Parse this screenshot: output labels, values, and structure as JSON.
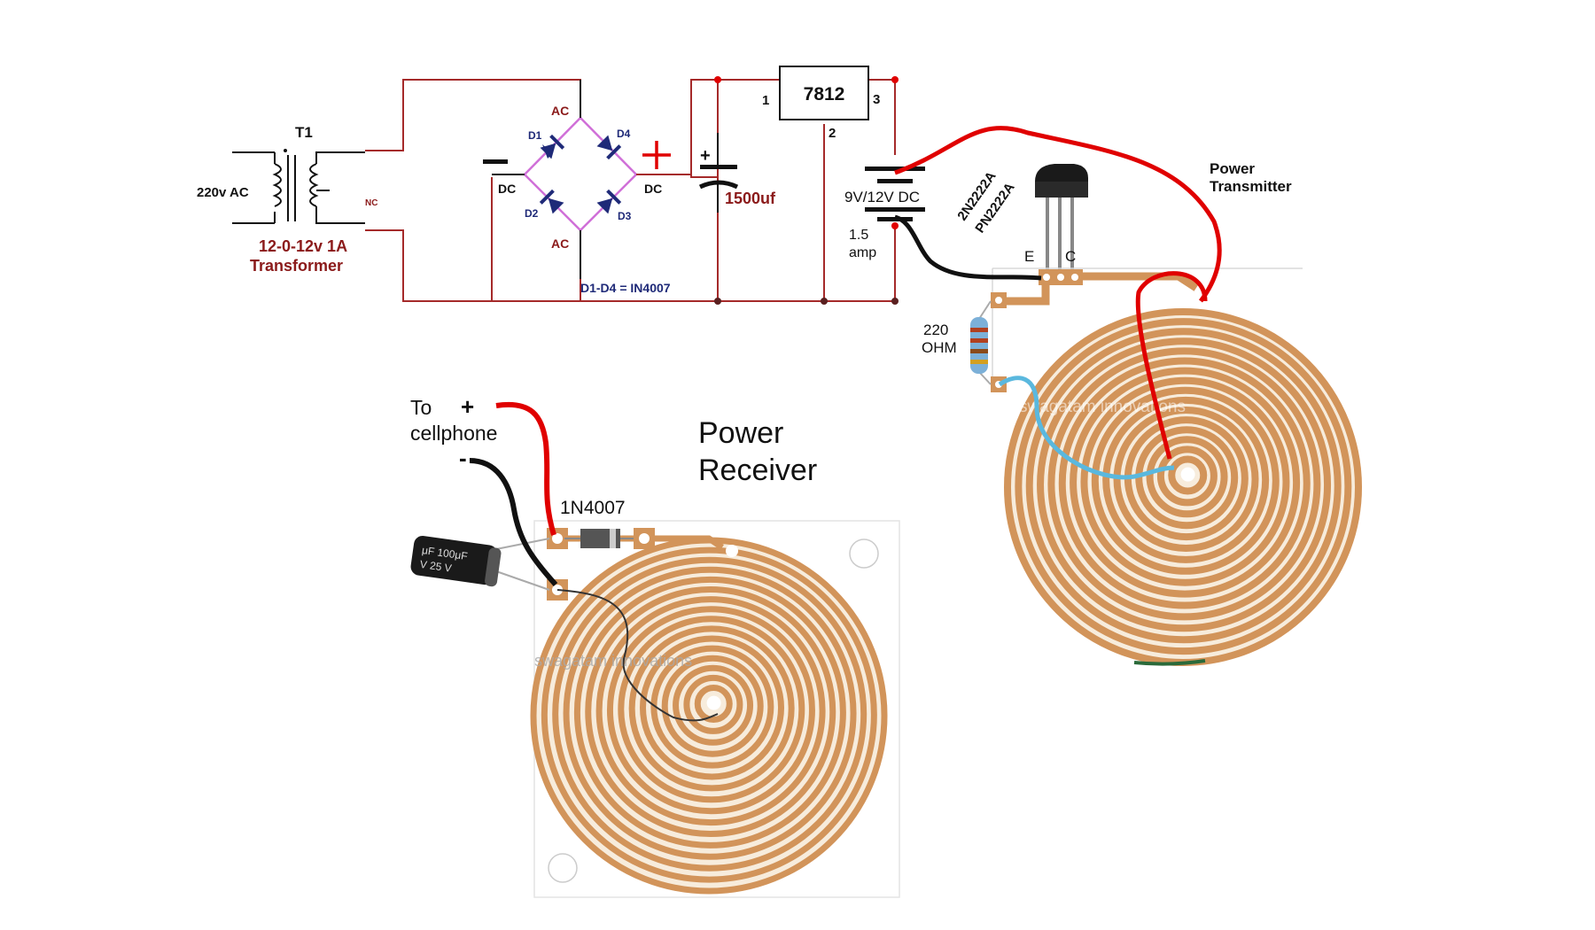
{
  "labels": {
    "transformer_ref": "T1",
    "mains": "220v AC",
    "nc": "NC",
    "transformer_rating": "12-0-12v  1A",
    "transformer_name": "Transformer",
    "ac_top": "AC",
    "ac_bottom": "AC",
    "dc_left": "DC",
    "dc_right": "DC",
    "d1": "D1",
    "d2": "D2",
    "d3": "D3",
    "d4": "D4",
    "diode_note": "D1-D4 = IN4007",
    "capacitor": "1500uf",
    "regulator": "7812",
    "pin1": "1",
    "pin2": "2",
    "pin3": "3",
    "battery": "9V/12V DC",
    "current_1": "1.5",
    "current_2": "amp",
    "transistor_1": "2N2222A",
    "transistor_2": "PN2222A",
    "emitter": "E",
    "collector": "C",
    "resistor_1": "220",
    "resistor_2": "OHM",
    "transmitter_1": "Power",
    "transmitter_2": "Transmitter",
    "receiver_1": "Power",
    "receiver_2": "Receiver",
    "rx_diode": "1N4007",
    "to_phone_1": "To",
    "to_phone_2": "cellphone",
    "plus": "+",
    "minus": "-",
    "rx_cap_1": "μF 100μF",
    "rx_cap_2": "V   25 V",
    "watermark": "swagatam innovations"
  },
  "colors": {
    "schematic_wire": "#a52a2a",
    "diode_body": "#1f2a78",
    "bridge_box": "#d070d8",
    "copper_trace": "#d2945a",
    "copper_gap": "#f7ecdc",
    "red_wire": "#e00000",
    "black_wire": "#111111",
    "blue_wire": "#5ab8de"
  }
}
